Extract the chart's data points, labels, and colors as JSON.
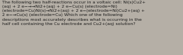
{
  "text": "The following two half-reactions occur in a voltaic cell: Ni(s)Cu2+\n(aq) + 2 e−→→Ni2+(aq) + 2 e−Cu(s) (electrode=Ni)\n(electrode=Cu)Ni(s)→Ni2+(aq) + 2 e−(electrode=Ni)Cu2+(aq) +\n2 e−→Cu(s) (electrode=Cu) Which one of the following\ndescriptions most accurately describes what is occurring in the\nhalf cell containing the Cu electrode and Cu2+(aq) solution?",
  "bg_color": "#b5afa6",
  "text_color": "#1a1a1a",
  "fontsize": 4.5,
  "figwidth": 2.62,
  "figheight": 0.79,
  "dpi": 100
}
